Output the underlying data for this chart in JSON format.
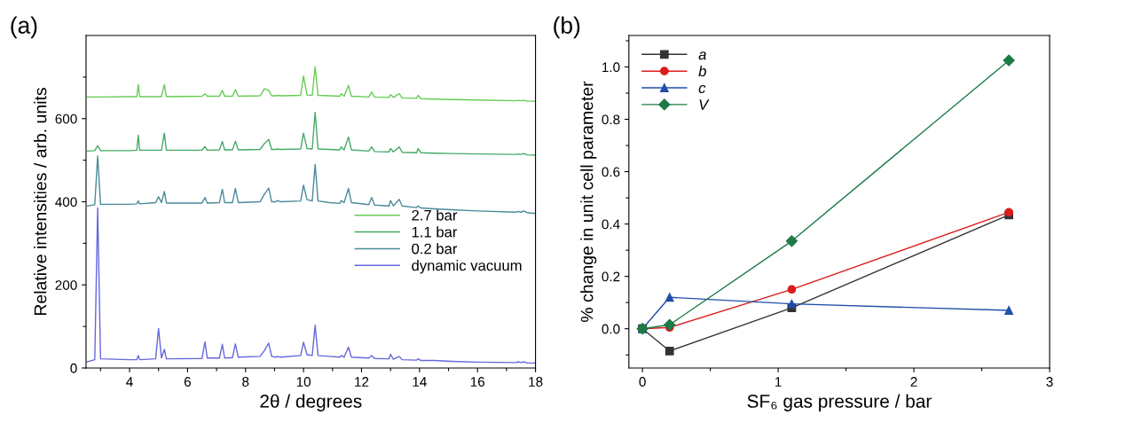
{
  "chart_data": [
    {
      "type": "line",
      "title": "(a)",
      "xlabel": "2θ / degrees",
      "ylabel": "Relative intensities / arb. units",
      "x": [
        2.55,
        2.8,
        2.9,
        3.0,
        4.0,
        4.25,
        4.3,
        4.35,
        4.9,
        5.0,
        5.1,
        5.2,
        5.27,
        6.5,
        6.6,
        6.68,
        7.1,
        7.2,
        7.28,
        7.55,
        7.65,
        7.75,
        8.5,
        8.65,
        8.8,
        8.9,
        9.05,
        9.1,
        9.2,
        9.9,
        10.0,
        10.12,
        10.3,
        10.4,
        10.5,
        10.9,
        11.25,
        11.3,
        11.4,
        11.55,
        11.65,
        12.25,
        12.35,
        12.45,
        12.95,
        13.0,
        13.1,
        13.3,
        13.4,
        13.9,
        13.95,
        14.05,
        14.5,
        15.1,
        16.0,
        17.35,
        17.4,
        17.5,
        17.6,
        17.7,
        18.0
      ],
      "series": [
        {
          "name": "2.7 bar",
          "color": "#66cc55",
          "values": [
            652,
            652,
            652,
            652,
            653,
            653,
            682,
            653,
            653,
            653,
            653,
            682,
            653,
            654,
            660,
            654,
            654,
            668,
            654,
            654,
            670,
            654,
            655,
            672,
            668,
            655,
            655,
            656,
            655,
            656,
            703,
            657,
            656,
            725,
            656,
            655,
            654,
            660,
            654,
            680,
            654,
            652,
            664,
            652,
            651,
            658,
            651,
            660,
            650,
            649,
            656,
            648,
            647,
            646,
            645,
            643,
            644,
            643,
            644,
            642,
            642
          ]
        },
        {
          "name": "1.1 bar",
          "color": "#44aa66",
          "values": [
            522,
            523,
            535,
            523,
            523,
            524,
            560,
            524,
            524,
            524,
            524,
            565,
            524,
            524,
            533,
            524,
            525,
            545,
            525,
            525,
            546,
            525,
            526,
            540,
            550,
            526,
            526,
            527,
            526,
            527,
            565,
            528,
            527,
            615,
            527,
            526,
            525,
            532,
            525,
            556,
            525,
            522,
            532,
            521,
            520,
            528,
            520,
            532,
            519,
            518,
            528,
            518,
            517,
            516,
            515,
            514,
            515,
            514,
            516,
            513,
            512
          ]
        },
        {
          "name": "0.2 bar",
          "color": "#4a8a99",
          "values": [
            390,
            393,
            510,
            394,
            394,
            395,
            402,
            395,
            398,
            412,
            398,
            425,
            397,
            397,
            410,
            397,
            398,
            430,
            398,
            398,
            432,
            398,
            400,
            418,
            433,
            400,
            400,
            403,
            400,
            402,
            440,
            405,
            402,
            490,
            402,
            398,
            396,
            403,
            398,
            432,
            398,
            393,
            410,
            392,
            390,
            403,
            390,
            406,
            390,
            386,
            390,
            385,
            383,
            381,
            378,
            375,
            377,
            375,
            378,
            374,
            372
          ]
        },
        {
          "name": "dynamic vacuum",
          "color": "#6666dd",
          "values": [
            15,
            20,
            385,
            22,
            20,
            20,
            30,
            20,
            22,
            95,
            24,
            45,
            22,
            23,
            63,
            24,
            24,
            57,
            24,
            25,
            58,
            26,
            28,
            42,
            60,
            28,
            26,
            28,
            26,
            30,
            62,
            32,
            30,
            103,
            30,
            28,
            26,
            30,
            26,
            50,
            26,
            24,
            30,
            23,
            22,
            33,
            21,
            28,
            20,
            19,
            22,
            18,
            18,
            16,
            14,
            13,
            15,
            13,
            15,
            12,
            12
          ]
        }
      ],
      "xlim": [
        2.5,
        18
      ],
      "ylim": [
        0,
        800
      ],
      "xticks": [
        {
          "value": 3,
          "label": null
        },
        4,
        {
          "value": 5,
          "label": null
        },
        6,
        {
          "value": 7,
          "label": null
        },
        8,
        {
          "value": 9,
          "label": null
        },
        10,
        {
          "value": 11,
          "label": null
        },
        12,
        {
          "value": 13,
          "label": null
        },
        14,
        {
          "value": 15,
          "label": null
        },
        16,
        {
          "value": 17,
          "label": null
        },
        18
      ],
      "yticks": [
        0,
        {
          "value": 100,
          "label": null
        },
        200,
        {
          "value": 300,
          "label": null
        },
        400,
        {
          "value": 500,
          "label": null
        },
        600,
        {
          "value": 700,
          "label": null
        }
      ],
      "legend": "center right",
      "marker": "none",
      "line_style": "solid"
    },
    {
      "type": "line",
      "title": "(b)",
      "xlabel": "SF₆ gas pressure / bar",
      "ylabel": "% change in unit cell parameter",
      "x": [
        0,
        0.2,
        1.1,
        2.7
      ],
      "series": [
        {
          "name": "a",
          "color": "#333333",
          "marker": "square",
          "values": [
            0,
            -0.085,
            0.08,
            0.435
          ]
        },
        {
          "name": "b",
          "color": "#dd1c1c",
          "marker": "circle",
          "values": [
            0,
            0.005,
            0.15,
            0.445
          ]
        },
        {
          "name": "c",
          "color": "#1f4fa8",
          "marker": "triangle",
          "values": [
            0,
            0.12,
            0.095,
            0.07
          ]
        },
        {
          "name": "V",
          "color": "#1e7a46",
          "marker": "diamond",
          "values": [
            0,
            0.015,
            0.335,
            1.025
          ]
        }
      ],
      "xlim": [
        -0.1,
        3
      ],
      "ylim": [
        -0.15,
        1.12
      ],
      "xticks": [
        0,
        {
          "value": 0.5,
          "label": null
        },
        1,
        {
          "value": 1.5,
          "label": null
        },
        2,
        {
          "value": 2.5,
          "label": null
        },
        3
      ],
      "yticks": [
        {
          "value": -0.1,
          "label": null
        },
        {
          "value": 0,
          "label": "0.0"
        },
        {
          "value": 0.1,
          "label": null
        },
        0.2,
        {
          "value": 0.3,
          "label": null
        },
        0.4,
        {
          "value": 0.5,
          "label": null
        },
        0.6,
        {
          "value": 0.7,
          "label": null
        },
        0.8,
        {
          "value": 0.9,
          "label": null
        },
        {
          "value": 1.0,
          "label": "1.0"
        },
        {
          "value": 1.1,
          "label": null
        }
      ],
      "legend": "top left",
      "line_style": "solid"
    }
  ]
}
